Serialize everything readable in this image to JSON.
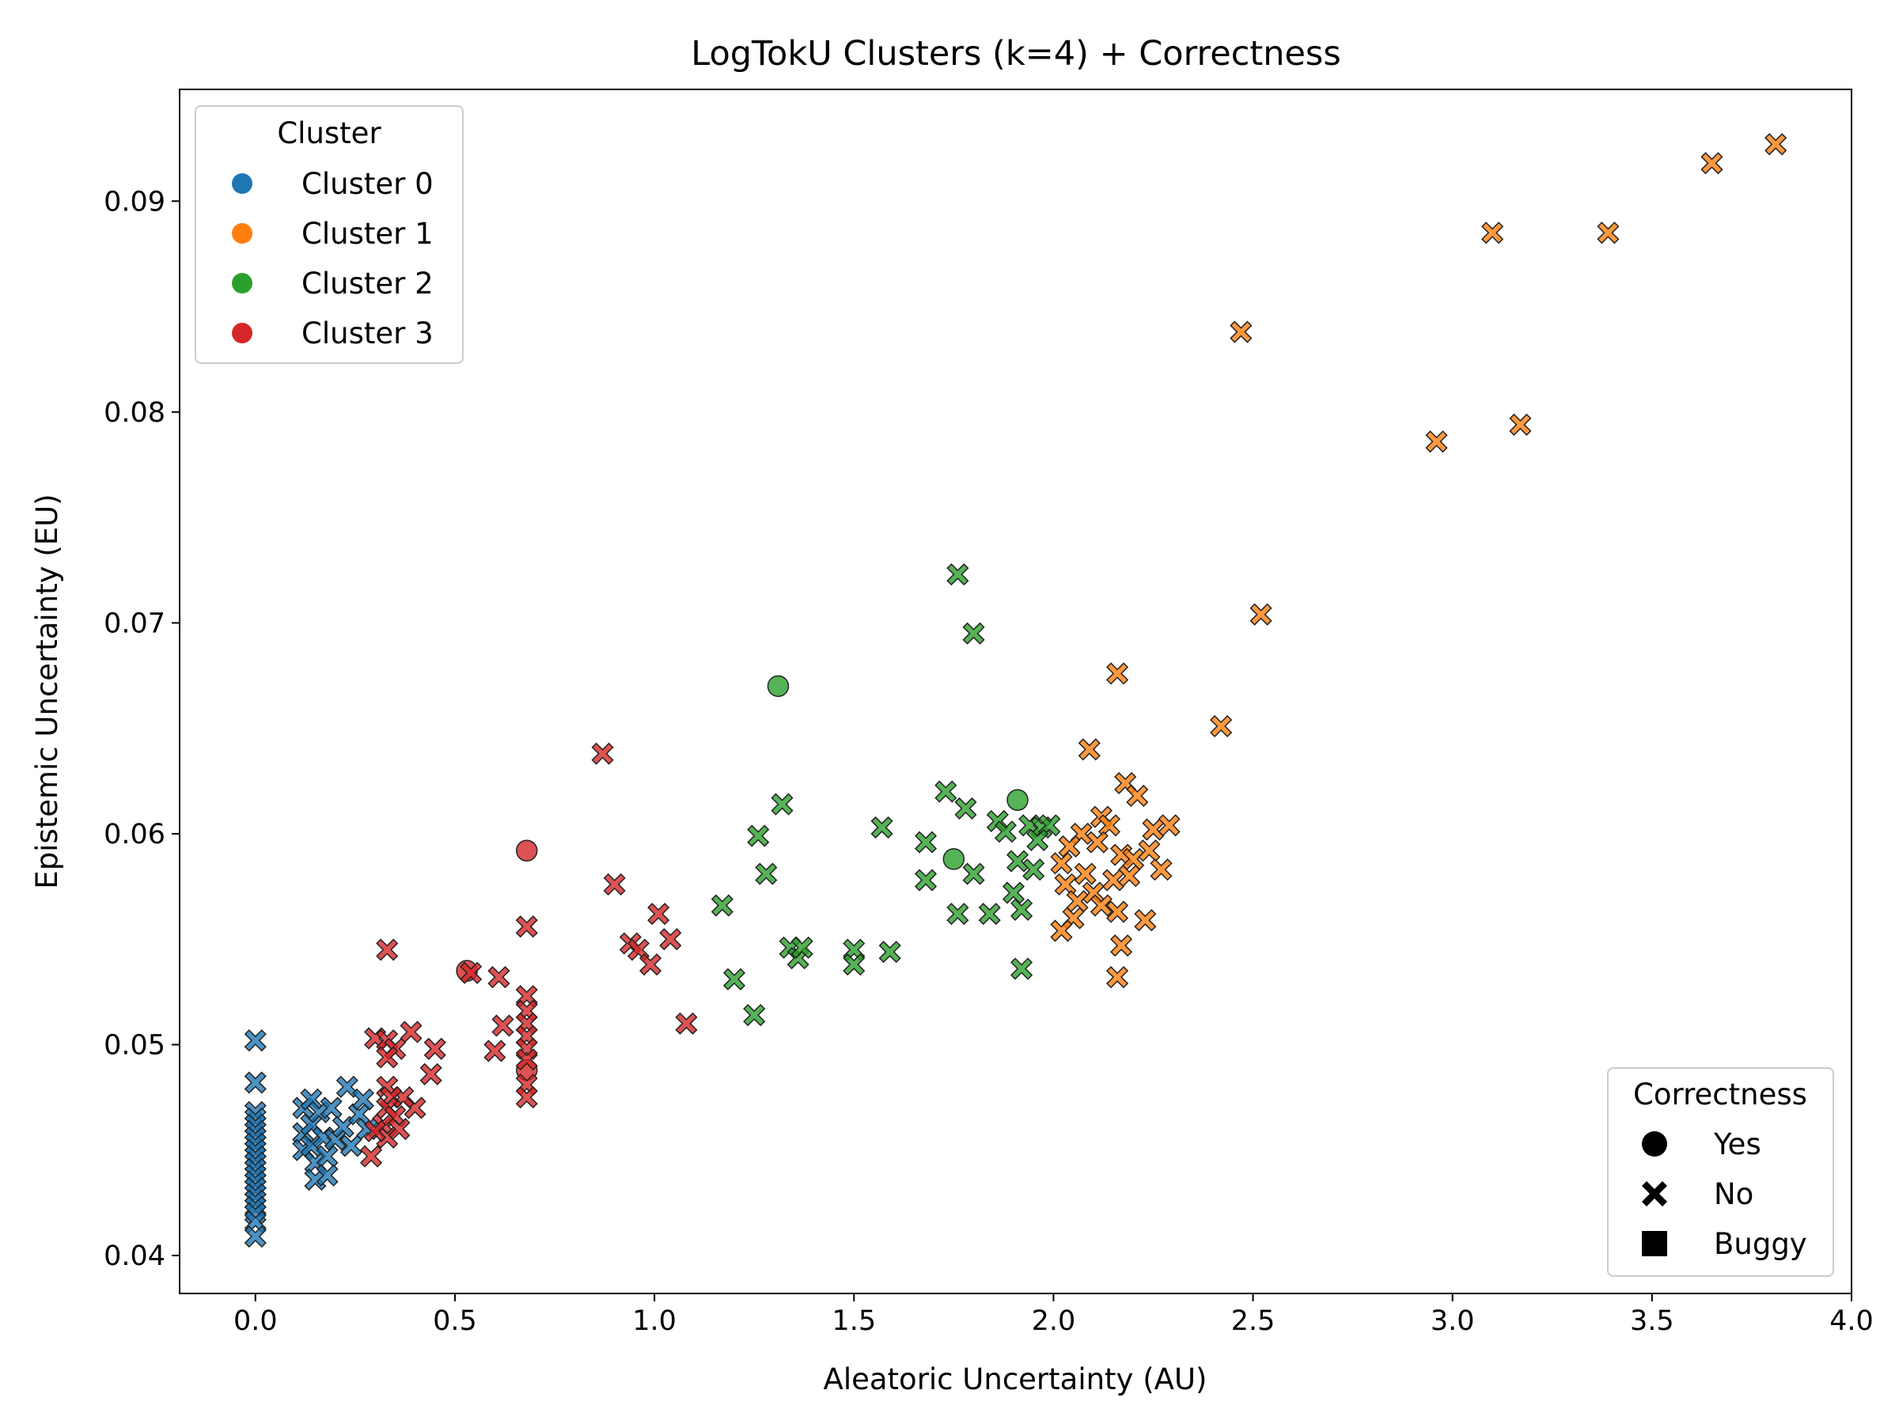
{
  "chart_data": {
    "type": "scatter",
    "title": "LogTokU Clusters (k=4) + Correctness",
    "xlabel": "Aleatoric Uncertainty (AU)",
    "ylabel": "Epistemic Uncertainty (EU)",
    "xlim": [
      -0.19,
      4.0
    ],
    "ylim": [
      0.0382,
      0.0953
    ],
    "xticks": [
      "0.0",
      "0.5",
      "1.0",
      "1.5",
      "2.0",
      "2.5",
      "3.0",
      "3.5",
      "4.0"
    ],
    "yticks": [
      "0.04",
      "0.05",
      "0.06",
      "0.07",
      "0.08",
      "0.09"
    ],
    "grid": false,
    "legends": {
      "cluster": {
        "title": "Cluster",
        "placement": "top-left",
        "entries": [
          {
            "label": "Cluster 0",
            "color": "#1f77b4"
          },
          {
            "label": "Cluster 1",
            "color": "#ff7f0e"
          },
          {
            "label": "Cluster 2",
            "color": "#2ca02c"
          },
          {
            "label": "Cluster 3",
            "color": "#d62728"
          }
        ]
      },
      "correctness": {
        "title": "Correctness",
        "placement": "bottom-right",
        "entries": [
          {
            "label": "Yes",
            "marker": "circle"
          },
          {
            "label": "No",
            "marker": "x"
          },
          {
            "label": "Buggy",
            "marker": "square"
          }
        ]
      }
    },
    "series": [
      {
        "name": "Cluster 0",
        "color": "#1f77b4",
        "points": [
          [
            0.0,
            0.0502,
            "x"
          ],
          [
            0.0,
            0.0482,
            "x"
          ],
          [
            0.0,
            0.0468,
            "x"
          ],
          [
            0.0,
            0.0465,
            "x"
          ],
          [
            0.0,
            0.0462,
            "x"
          ],
          [
            0.0,
            0.0459,
            "x"
          ],
          [
            0.0,
            0.0456,
            "x"
          ],
          [
            0.0,
            0.0453,
            "x"
          ],
          [
            0.0,
            0.045,
            "x"
          ],
          [
            0.0,
            0.0447,
            "x"
          ],
          [
            0.0,
            0.0444,
            "x"
          ],
          [
            0.0,
            0.0441,
            "x"
          ],
          [
            0.0,
            0.0438,
            "x"
          ],
          [
            0.0,
            0.0435,
            "x"
          ],
          [
            0.0,
            0.0432,
            "x"
          ],
          [
            0.0,
            0.0429,
            "x"
          ],
          [
            0.0,
            0.0426,
            "x"
          ],
          [
            0.0,
            0.0423,
            "x"
          ],
          [
            0.0,
            0.042,
            "x"
          ],
          [
            0.0,
            0.0416,
            "x"
          ],
          [
            0.0,
            0.0409,
            "x"
          ],
          [
            0.12,
            0.047,
            "x"
          ],
          [
            0.12,
            0.0458,
            "x"
          ],
          [
            0.12,
            0.045,
            "x"
          ],
          [
            0.14,
            0.0474,
            "x"
          ],
          [
            0.14,
            0.0462,
            "x"
          ],
          [
            0.14,
            0.0452,
            "x"
          ],
          [
            0.15,
            0.0444,
            "x"
          ],
          [
            0.15,
            0.0436,
            "x"
          ],
          [
            0.16,
            0.0468,
            "x"
          ],
          [
            0.17,
            0.0456,
            "x"
          ],
          [
            0.18,
            0.0447,
            "x"
          ],
          [
            0.18,
            0.0438,
            "x"
          ],
          [
            0.19,
            0.047,
            "x"
          ],
          [
            0.2,
            0.0455,
            "x"
          ],
          [
            0.22,
            0.0461,
            "x"
          ],
          [
            0.23,
            0.048,
            "x"
          ],
          [
            0.24,
            0.0452,
            "x"
          ],
          [
            0.26,
            0.0467,
            "x"
          ],
          [
            0.27,
            0.0474,
            "x"
          ],
          [
            0.28,
            0.046,
            "x"
          ]
        ]
      },
      {
        "name": "Cluster 1",
        "color": "#ff7f0e",
        "points": [
          [
            3.81,
            0.0927,
            "x"
          ],
          [
            3.65,
            0.0918,
            "x"
          ],
          [
            3.1,
            0.0885,
            "x"
          ],
          [
            3.39,
            0.0885,
            "x"
          ],
          [
            2.47,
            0.0838,
            "x"
          ],
          [
            2.96,
            0.0786,
            "x"
          ],
          [
            3.17,
            0.0794,
            "x"
          ],
          [
            2.52,
            0.0704,
            "x"
          ],
          [
            2.42,
            0.0651,
            "x"
          ],
          [
            2.16,
            0.0676,
            "x"
          ],
          [
            2.09,
            0.064,
            "x"
          ],
          [
            2.18,
            0.0624,
            "x"
          ],
          [
            2.21,
            0.0618,
            "x"
          ],
          [
            2.12,
            0.0608,
            "x"
          ],
          [
            2.07,
            0.06,
            "x"
          ],
          [
            2.14,
            0.0604,
            "x"
          ],
          [
            2.04,
            0.0594,
            "x"
          ],
          [
            2.11,
            0.0596,
            "x"
          ],
          [
            2.17,
            0.059,
            "x"
          ],
          [
            2.25,
            0.0602,
            "x"
          ],
          [
            2.29,
            0.0604,
            "x"
          ],
          [
            2.02,
            0.0586,
            "x"
          ],
          [
            2.08,
            0.0581,
            "x"
          ],
          [
            2.2,
            0.0588,
            "x"
          ],
          [
            2.24,
            0.0592,
            "x"
          ],
          [
            2.27,
            0.0583,
            "x"
          ],
          [
            2.03,
            0.0576,
            "x"
          ],
          [
            2.1,
            0.0572,
            "x"
          ],
          [
            2.15,
            0.0578,
            "x"
          ],
          [
            2.19,
            0.058,
            "x"
          ],
          [
            2.06,
            0.0568,
            "x"
          ],
          [
            2.12,
            0.0566,
            "x"
          ],
          [
            2.16,
            0.0563,
            "x"
          ],
          [
            2.05,
            0.056,
            "x"
          ],
          [
            2.02,
            0.0554,
            "x"
          ],
          [
            2.23,
            0.0559,
            "x"
          ],
          [
            2.17,
            0.0547,
            "x"
          ],
          [
            2.16,
            0.0532,
            "x"
          ]
        ]
      },
      {
        "name": "Cluster 2",
        "color": "#2ca02c",
        "points": [
          [
            1.31,
            0.067,
            "o"
          ],
          [
            1.91,
            0.0616,
            "o"
          ],
          [
            1.75,
            0.0588,
            "o"
          ],
          [
            1.76,
            0.0723,
            "x"
          ],
          [
            1.8,
            0.0695,
            "x"
          ],
          [
            1.32,
            0.0614,
            "x"
          ],
          [
            1.26,
            0.0599,
            "x"
          ],
          [
            1.28,
            0.0581,
            "x"
          ],
          [
            1.17,
            0.0566,
            "x"
          ],
          [
            1.2,
            0.0531,
            "x"
          ],
          [
            1.25,
            0.0514,
            "x"
          ],
          [
            1.34,
            0.0546,
            "x"
          ],
          [
            1.36,
            0.0541,
            "x"
          ],
          [
            1.37,
            0.0546,
            "x"
          ],
          [
            1.5,
            0.0545,
            "x"
          ],
          [
            1.5,
            0.0538,
            "x"
          ],
          [
            1.59,
            0.0544,
            "x"
          ],
          [
            1.57,
            0.0603,
            "x"
          ],
          [
            1.68,
            0.0596,
            "x"
          ],
          [
            1.68,
            0.0578,
            "x"
          ],
          [
            1.73,
            0.062,
            "x"
          ],
          [
            1.78,
            0.0612,
            "x"
          ],
          [
            1.8,
            0.0581,
            "x"
          ],
          [
            1.76,
            0.0562,
            "x"
          ],
          [
            1.84,
            0.0562,
            "x"
          ],
          [
            1.86,
            0.0606,
            "x"
          ],
          [
            1.88,
            0.0601,
            "x"
          ],
          [
            1.91,
            0.0587,
            "x"
          ],
          [
            1.92,
            0.0564,
            "x"
          ],
          [
            1.9,
            0.0572,
            "x"
          ],
          [
            1.95,
            0.0583,
            "x"
          ],
          [
            1.94,
            0.0604,
            "x"
          ],
          [
            1.97,
            0.0603,
            "x"
          ],
          [
            1.99,
            0.0604,
            "x"
          ],
          [
            1.96,
            0.0597,
            "x"
          ],
          [
            1.92,
            0.0536,
            "x"
          ]
        ]
      },
      {
        "name": "Cluster 3",
        "color": "#d62728",
        "points": [
          [
            0.68,
            0.0592,
            "o"
          ],
          [
            0.53,
            0.0535,
            "o"
          ],
          [
            0.68,
            0.0488,
            "o"
          ],
          [
            0.87,
            0.0638,
            "x"
          ],
          [
            0.9,
            0.0576,
            "x"
          ],
          [
            1.01,
            0.0562,
            "x"
          ],
          [
            0.94,
            0.0548,
            "x"
          ],
          [
            0.96,
            0.0545,
            "x"
          ],
          [
            1.04,
            0.055,
            "x"
          ],
          [
            0.99,
            0.0538,
            "x"
          ],
          [
            1.08,
            0.051,
            "x"
          ],
          [
            0.68,
            0.0556,
            "x"
          ],
          [
            0.68,
            0.0523,
            "x"
          ],
          [
            0.68,
            0.0516,
            "x"
          ],
          [
            0.68,
            0.051,
            "x"
          ],
          [
            0.68,
            0.0504,
            "x"
          ],
          [
            0.68,
            0.0498,
            "x"
          ],
          [
            0.68,
            0.0493,
            "x"
          ],
          [
            0.68,
            0.0481,
            "x"
          ],
          [
            0.68,
            0.0475,
            "x"
          ],
          [
            0.61,
            0.0532,
            "x"
          ],
          [
            0.62,
            0.0509,
            "x"
          ],
          [
            0.6,
            0.0497,
            "x"
          ],
          [
            0.54,
            0.0534,
            "x"
          ],
          [
            0.45,
            0.0498,
            "x"
          ],
          [
            0.44,
            0.0486,
            "x"
          ],
          [
            0.39,
            0.0506,
            "x"
          ],
          [
            0.4,
            0.047,
            "x"
          ],
          [
            0.37,
            0.0475,
            "x"
          ],
          [
            0.33,
            0.0545,
            "x"
          ],
          [
            0.3,
            0.0503,
            "x"
          ],
          [
            0.33,
            0.0502,
            "x"
          ],
          [
            0.35,
            0.0498,
            "x"
          ],
          [
            0.33,
            0.0494,
            "x"
          ],
          [
            0.33,
            0.048,
            "x"
          ],
          [
            0.34,
            0.0475,
            "x"
          ],
          [
            0.33,
            0.047,
            "x"
          ],
          [
            0.35,
            0.0466,
            "x"
          ],
          [
            0.32,
            0.0462,
            "x"
          ],
          [
            0.33,
            0.0456,
            "x"
          ],
          [
            0.36,
            0.046,
            "x"
          ],
          [
            0.3,
            0.0459,
            "x"
          ],
          [
            0.29,
            0.0447,
            "x"
          ]
        ]
      }
    ]
  }
}
